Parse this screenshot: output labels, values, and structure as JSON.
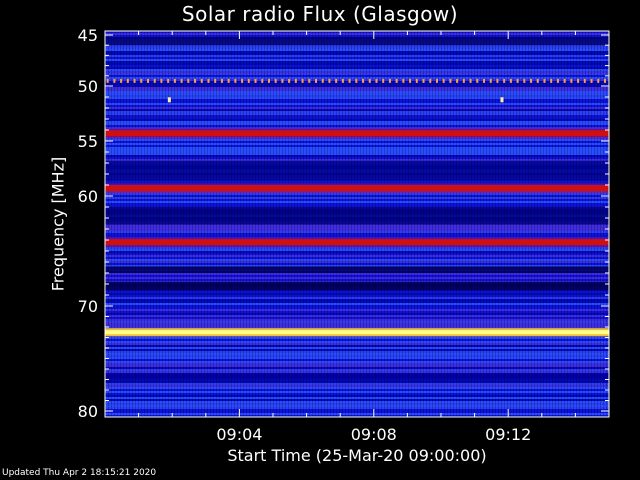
{
  "chart_data": {
    "type": "heatmap",
    "title": "Solar radio Flux (Glasgow)",
    "xlabel": "Start Time (25-Mar-20 09:00:00)",
    "ylabel": "Frequency [MHz]",
    "x_range_minutes": [
      0,
      15
    ],
    "x_ticks": [
      {
        "minute": 4,
        "label": "09:04"
      },
      {
        "minute": 8,
        "label": "09:08"
      },
      {
        "minute": 12,
        "label": "09:12"
      }
    ],
    "y_range_mhz": [
      45,
      80
    ],
    "y_reversed": true,
    "y_ticks": [
      {
        "mhz": 45,
        "label": "45"
      },
      {
        "mhz": 50,
        "label": "50"
      },
      {
        "mhz": 55,
        "label": "55"
      },
      {
        "mhz": 60,
        "label": "60"
      },
      {
        "mhz": 70,
        "label": "70"
      },
      {
        "mhz": 80,
        "label": "80"
      }
    ],
    "background_level": "blue",
    "bands": [
      {
        "mhz": 49.5,
        "level": "orange",
        "pattern": "dotted",
        "period_minutes": 0.2
      },
      {
        "mhz": 54.3,
        "level": "red"
      },
      {
        "mhz": 59.3,
        "level": "red"
      },
      {
        "mhz": 64.2,
        "level": "red"
      },
      {
        "mhz": 72.5,
        "level": "yellow-white"
      }
    ],
    "spots": [
      {
        "minute": 1.9,
        "mhz": 51.3
      },
      {
        "minute": 11.8,
        "mhz": 51.3
      }
    ]
  },
  "colors": {
    "background": "#000000",
    "blue_dark": "#0000a0",
    "blue": "#1a3cff",
    "red": "#d01010",
    "orange": "#ffa040",
    "yellow": "#ffff90",
    "axis": "#ffffff"
  },
  "footer": "Updated Thu Apr  2 18:15:21 2020"
}
